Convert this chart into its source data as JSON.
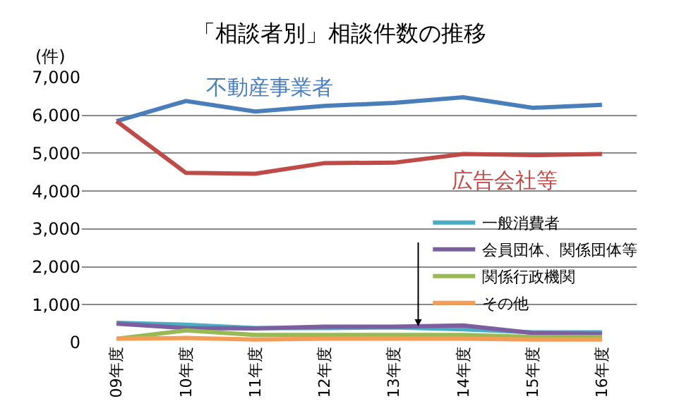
{
  "chart_data": {
    "type": "line",
    "title": "「相談者別」相談件数の推移",
    "ylabel": "(件)",
    "categories": [
      "09年度",
      "10年度",
      "11年度",
      "12年度",
      "13年度",
      "14年度",
      "15年度",
      "16年度"
    ],
    "series": [
      {
        "name": "不動産事業者",
        "color": "#4a7ebb",
        "values": [
          5850,
          6380,
          6100,
          6250,
          6330,
          6480,
          6200,
          6280
        ]
      },
      {
        "name": "広告会社等",
        "color": "#be4b48",
        "values": [
          5850,
          4480,
          4460,
          4740,
          4750,
          4980,
          4950,
          4980
        ]
      },
      {
        "name": "一般消費者",
        "color": "#4bacc6",
        "values": [
          520,
          470,
          380,
          380,
          400,
          350,
          270,
          270
        ]
      },
      {
        "name": "会員団体、関係団体等",
        "color": "#7d5fa0",
        "values": [
          500,
          380,
          370,
          420,
          420,
          450,
          250,
          230
        ]
      },
      {
        "name": "関係行政機関",
        "color": "#98b954",
        "values": [
          100,
          320,
          200,
          200,
          200,
          200,
          150,
          150
        ]
      },
      {
        "name": "その他",
        "color": "#f59d56",
        "values": [
          100,
          120,
          80,
          100,
          100,
          100,
          80,
          80
        ]
      }
    ],
    "ylim": [
      0,
      7000
    ],
    "yticks": [
      {
        "value": 0,
        "label": "0"
      },
      {
        "value": 1000,
        "label": "1,000"
      },
      {
        "value": 2000,
        "label": "2,000"
      },
      {
        "value": 3000,
        "label": "3,000"
      },
      {
        "value": 4000,
        "label": "4,000"
      },
      {
        "value": 5000,
        "label": "5,000"
      },
      {
        "value": 6000,
        "label": "6,000"
      },
      {
        "value": 7000,
        "label": "7,000"
      }
    ],
    "grid": "y",
    "legend": "right",
    "marker": "none",
    "line_style": "solid"
  }
}
